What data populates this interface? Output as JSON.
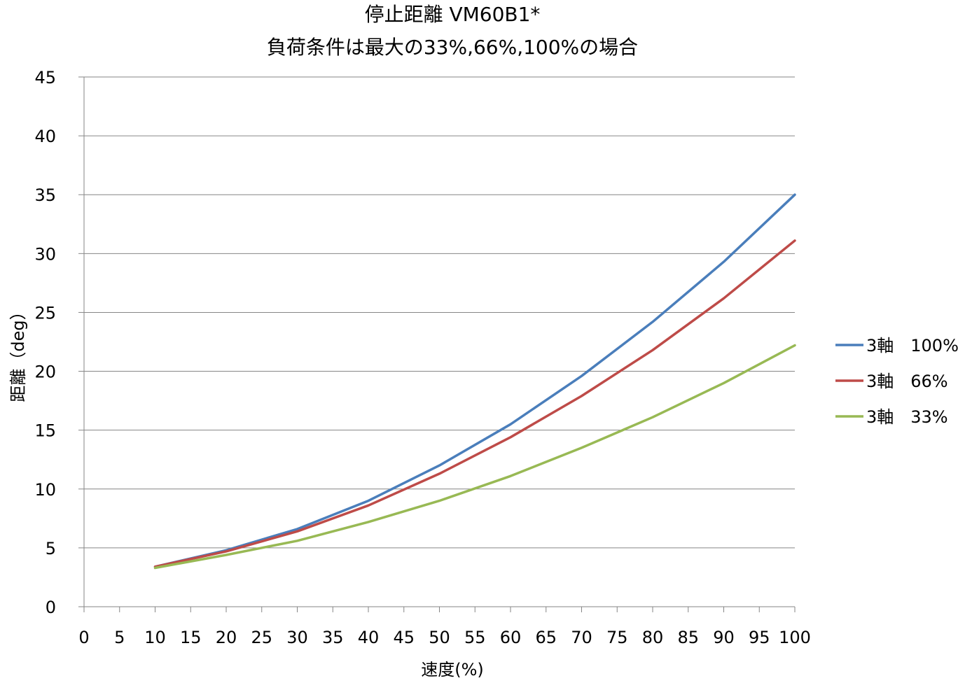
{
  "chart_data": {
    "type": "line",
    "title_line1": "停止距離 VM60B1*",
    "title_line2": "負荷条件は最大の33%,66%,100%の場合",
    "xlabel": "速度(%)",
    "ylabel": "距離（deg）",
    "xlim": [
      0,
      100
    ],
    "ylim": [
      0,
      45
    ],
    "x_ticks": [
      "0",
      "5",
      "10",
      "15",
      "20",
      "25",
      "30",
      "35",
      "40",
      "45",
      "50",
      "55",
      "60",
      "65",
      "70",
      "75",
      "80",
      "85",
      "90",
      "95",
      "100"
    ],
    "y_ticks": [
      "0",
      "5",
      "10",
      "15",
      "20",
      "25",
      "30",
      "35",
      "40",
      "45"
    ],
    "grid": "horizontal",
    "legend_position": "right",
    "x": [
      10,
      20,
      30,
      40,
      50,
      60,
      70,
      80,
      90,
      100
    ],
    "series": [
      {
        "name": "3軸　100%",
        "color": "#4a7ebb",
        "values": [
          3.4,
          4.8,
          6.6,
          9.0,
          12.0,
          15.5,
          19.6,
          24.2,
          29.3,
          35.0
        ]
      },
      {
        "name": "3軸　66%",
        "color": "#be4b48",
        "values": [
          3.4,
          4.7,
          6.4,
          8.6,
          11.3,
          14.4,
          17.9,
          21.8,
          26.2,
          31.1
        ]
      },
      {
        "name": "3軸　33%",
        "color": "#98b954",
        "values": [
          3.3,
          4.4,
          5.6,
          7.2,
          9.0,
          11.1,
          13.5,
          16.1,
          19.0,
          22.2
        ]
      }
    ]
  }
}
